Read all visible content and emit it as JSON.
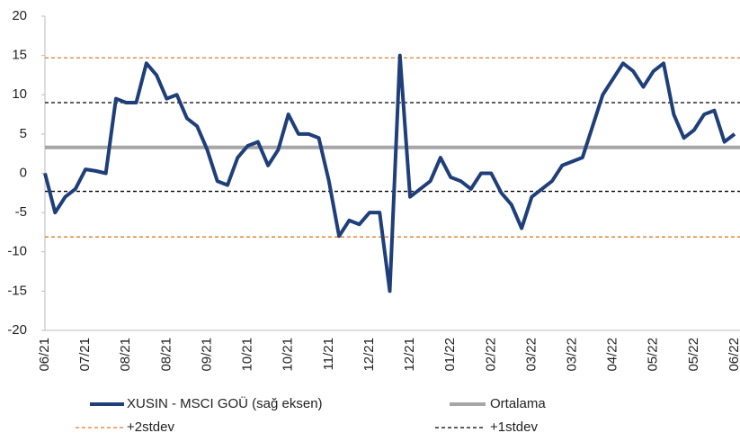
{
  "chart_data": {
    "type": "line",
    "categories": [
      "06/21",
      null,
      null,
      null,
      "07/21",
      null,
      null,
      null,
      "08/21",
      null,
      null,
      null,
      "08/21",
      null,
      null,
      null,
      "09/21",
      null,
      null,
      null,
      "10/21",
      null,
      null,
      null,
      "10/21",
      null,
      null,
      null,
      "11/21",
      null,
      null,
      null,
      "12/21",
      null,
      null,
      null,
      "12/21",
      null,
      null,
      null,
      "01/22",
      null,
      null,
      null,
      "02/22",
      null,
      null,
      null,
      "03/22",
      null,
      null,
      null,
      "03/22",
      null,
      null,
      null,
      "04/22",
      null,
      null,
      null,
      "05/22",
      null,
      null,
      null,
      "05/22",
      null,
      null,
      null,
      "06/22"
    ],
    "series": [
      {
        "name": "XUSIN - MSCI GOÜ (sağ eksen)",
        "color": "#1f3f7a",
        "values": [
          0,
          -5,
          -3,
          -2,
          0.5,
          0.3,
          0,
          9.5,
          9,
          9,
          14,
          12.5,
          9.5,
          10,
          7,
          6,
          3,
          -1,
          -1.5,
          2,
          3.5,
          4,
          1,
          3,
          7.5,
          5,
          5,
          4.5,
          -1,
          -8,
          -6,
          -6.5,
          -5,
          -5,
          -15,
          15,
          -3,
          -2,
          -1,
          2,
          -0.5,
          -1,
          -2,
          0,
          0,
          -2.5,
          -4,
          -7,
          -3,
          -2,
          -1,
          1,
          1.5,
          2,
          6,
          10,
          12,
          14,
          13,
          11,
          13,
          14,
          7.5,
          4.5,
          5.5,
          7.5,
          8,
          4,
          5
        ]
      }
    ],
    "lines": [
      {
        "name": "Ortalama",
        "color": "#a6a6a6",
        "style": "solid",
        "values": [
          3.3
        ]
      },
      {
        "name": "+2stdev",
        "color": "#e07b28",
        "style": "dashed",
        "values": [
          14.7,
          -8.1
        ]
      },
      {
        "name": "+1stdev",
        "color": "#000000",
        "style": "dashed",
        "values": [
          9,
          -2.3
        ]
      }
    ],
    "ylim": [
      -20,
      20
    ],
    "yticks": [
      20,
      15,
      10,
      5,
      0,
      -5,
      -10,
      -15,
      -20
    ]
  }
}
